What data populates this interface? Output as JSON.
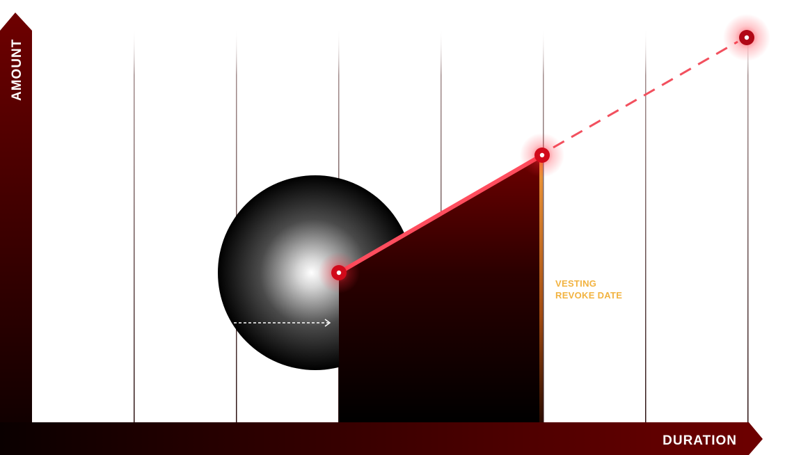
{
  "axes": {
    "y_label": "AMOUNT",
    "x_label": "DURATION"
  },
  "annotation": {
    "line1": "VESTING",
    "line2": "REVOKE DATE"
  },
  "colors": {
    "axis_dark": "#0a0000",
    "axis_red": "#6e0000",
    "accent_red": "#ff4d5e",
    "node_red": "#d10a1a",
    "annotation_gold": "#f2b340",
    "grid_line": "#4a3030"
  }
}
